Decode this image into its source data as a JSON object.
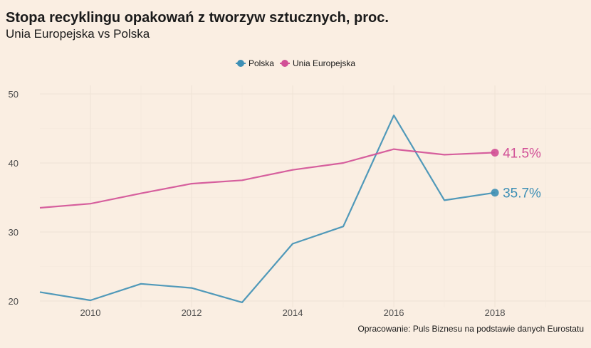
{
  "chart_data": {
    "type": "line",
    "title": "Stopa recyklingu opakowań z tworzyw sztucznych, proc.",
    "subtitle": "Unia Europejska vs Polska",
    "caption": "Opracowanie: Puls Biznesu na podstawie danych Eurostatu",
    "x": [
      2009,
      2010,
      2011,
      2012,
      2013,
      2014,
      2015,
      2016,
      2017,
      2018
    ],
    "x_ticks": [
      "2010",
      "2012",
      "2014",
      "2016",
      "2018"
    ],
    "y_ticks": [
      "20",
      "30",
      "40",
      "50"
    ],
    "xlim": [
      2009,
      2019.9
    ],
    "ylim": [
      20,
      50
    ],
    "grid": true,
    "legend_position": "top-center",
    "series": [
      {
        "name": "Polska",
        "color": "#3d8fb5",
        "values": [
          21.3,
          20.1,
          22.5,
          21.9,
          19.8,
          28.3,
          30.8,
          46.9,
          34.6,
          35.7
        ],
        "end_label": "35.7%"
      },
      {
        "name": "Unia Europejska",
        "color": "#d14f96",
        "values": [
          33.5,
          34.1,
          35.6,
          37.0,
          37.5,
          39.0,
          40.0,
          42.0,
          41.2,
          41.5
        ],
        "end_label": "41.5%"
      }
    ]
  }
}
